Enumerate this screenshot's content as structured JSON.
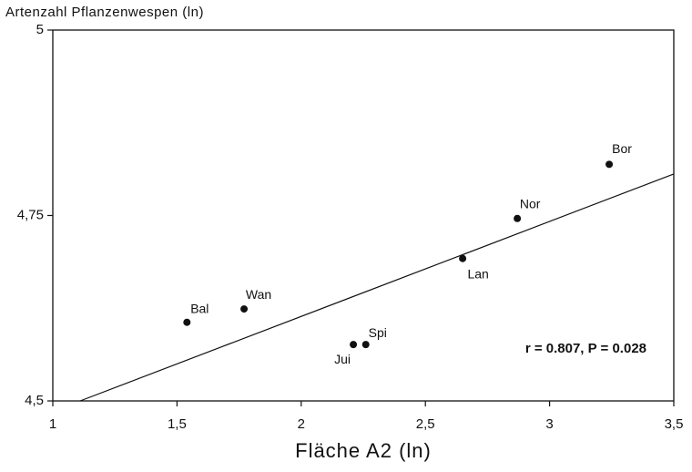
{
  "chart_data": {
    "type": "scatter",
    "title": "Artenzahl Pflanzenwespen (ln)",
    "x_label": "Fläche A2 (ln)",
    "labels": [
      "Bal",
      "Wan",
      "Jui",
      "Spi",
      "Lan",
      "Nor",
      "Bor"
    ],
    "x": [
      1.54,
      1.77,
      2.21,
      2.26,
      2.65,
      2.87,
      3.24
    ],
    "y": [
      4.606,
      4.624,
      4.576,
      4.576,
      4.692,
      4.746,
      4.819
    ],
    "color": "#111111",
    "trend_line": {
      "x": [
        1.11,
        3.5
      ],
      "y": [
        4.5,
        4.806
      ]
    },
    "annotation": "r = 0.807, P = 0.028",
    "xlim": [
      1,
      3.5
    ],
    "ylim": [
      4.5,
      5
    ],
    "xticks": [
      1,
      {
        "value": 1.5,
        "label": "1,5"
      },
      2,
      {
        "value": 2.5,
        "label": "2,5"
      },
      3,
      {
        "value": 3.5,
        "label": "3,5"
      }
    ],
    "yticks": [
      {
        "value": 4.5,
        "label": "4,5"
      },
      {
        "value": 4.75,
        "label": "4,75"
      },
      5
    ]
  }
}
